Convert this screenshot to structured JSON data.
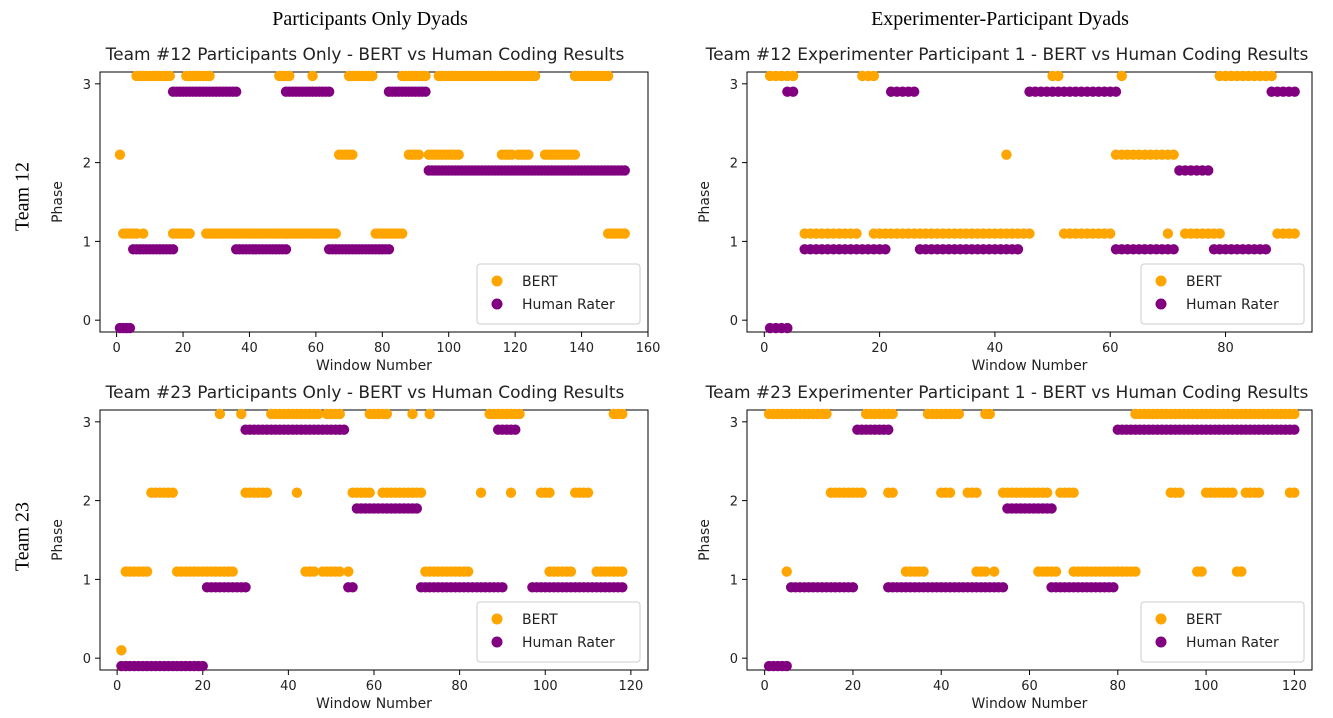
{
  "headers": {
    "left": "Participants Only Dyads",
    "right": "Experimenter-Participant Dyads"
  },
  "rows": {
    "top": "Team 12",
    "bottom": "Team 23"
  },
  "colors": {
    "bert": "#FFA500",
    "human": "#800080"
  },
  "chart_data": [
    {
      "type": "scatter",
      "title": "Team #12 Participants Only - BERT vs Human Coding Results",
      "xlabel": "Window Number",
      "ylabel": "Phase",
      "xlim": [
        -5,
        160
      ],
      "ylim": [
        -0.15,
        3.15
      ],
      "xticks": [
        0,
        20,
        40,
        60,
        80,
        100,
        120,
        140,
        160
      ],
      "yticks": [
        0,
        1,
        2,
        3
      ],
      "legend": "lower-right",
      "series": [
        {
          "name": "BERT",
          "runs": [
            {
              "from": 1,
              "to": 1,
              "y": 2
            },
            {
              "from": 2,
              "to": 6,
              "y": 1
            },
            {
              "from": 6,
              "to": 16,
              "y": 3
            },
            {
              "from": 8,
              "to": 8,
              "y": 1
            },
            {
              "from": 17,
              "to": 22,
              "y": 1
            },
            {
              "from": 21,
              "to": 28,
              "y": 3
            },
            {
              "from": 27,
              "to": 51,
              "y": 1
            },
            {
              "from": 49,
              "to": 52,
              "y": 3
            },
            {
              "from": 51,
              "to": 66,
              "y": 1
            },
            {
              "from": 59,
              "to": 59,
              "y": 3
            },
            {
              "from": 67,
              "to": 71,
              "y": 2
            },
            {
              "from": 70,
              "to": 77,
              "y": 3
            },
            {
              "from": 78,
              "to": 86,
              "y": 1
            },
            {
              "from": 86,
              "to": 93,
              "y": 3
            },
            {
              "from": 88,
              "to": 91,
              "y": 2
            },
            {
              "from": 94,
              "to": 103,
              "y": 2
            },
            {
              "from": 97,
              "to": 126,
              "y": 3
            },
            {
              "from": 116,
              "to": 119,
              "y": 2
            },
            {
              "from": 121,
              "to": 124,
              "y": 2
            },
            {
              "from": 129,
              "to": 138,
              "y": 2
            },
            {
              "from": 138,
              "to": 148,
              "y": 3
            },
            {
              "from": 148,
              "to": 153,
              "y": 1
            }
          ]
        },
        {
          "name": "Human Rater",
          "runs": [
            {
              "from": 1,
              "to": 4,
              "y": 0
            },
            {
              "from": 5,
              "to": 17,
              "y": 1
            },
            {
              "from": 17,
              "to": 36,
              "y": 3
            },
            {
              "from": 36,
              "to": 51,
              "y": 1
            },
            {
              "from": 51,
              "to": 64,
              "y": 3
            },
            {
              "from": 64,
              "to": 82,
              "y": 1
            },
            {
              "from": 82,
              "to": 93,
              "y": 3
            },
            {
              "from": 94,
              "to": 153,
              "y": 2
            }
          ]
        }
      ]
    },
    {
      "type": "scatter",
      "title": "Team #12 Experimenter Participant 1 - BERT vs Human Coding Results",
      "xlabel": "Window Number",
      "ylabel": "Phase",
      "xlim": [
        -3,
        95
      ],
      "ylim": [
        -0.15,
        3.15
      ],
      "xticks": [
        0,
        20,
        40,
        60,
        80
      ],
      "yticks": [
        0,
        1,
        2,
        3
      ],
      "legend": "lower-right",
      "series": [
        {
          "name": "BERT",
          "runs": [
            {
              "from": 1,
              "to": 5,
              "y": 3
            },
            {
              "from": 7,
              "to": 16,
              "y": 1
            },
            {
              "from": 17,
              "to": 19,
              "y": 3
            },
            {
              "from": 19,
              "to": 46,
              "y": 1
            },
            {
              "from": 42,
              "to": 42,
              "y": 2
            },
            {
              "from": 50,
              "to": 51,
              "y": 3
            },
            {
              "from": 52,
              "to": 60,
              "y": 1
            },
            {
              "from": 61,
              "to": 71,
              "y": 2
            },
            {
              "from": 62,
              "to": 62,
              "y": 3
            },
            {
              "from": 70,
              "to": 70,
              "y": 1
            },
            {
              "from": 73,
              "to": 79,
              "y": 1
            },
            {
              "from": 79,
              "to": 88,
              "y": 3
            },
            {
              "from": 89,
              "to": 92,
              "y": 1
            }
          ]
        },
        {
          "name": "Human Rater",
          "runs": [
            {
              "from": 1,
              "to": 4,
              "y": 0
            },
            {
              "from": 4,
              "to": 5,
              "y": 3
            },
            {
              "from": 7,
              "to": 21,
              "y": 1
            },
            {
              "from": 22,
              "to": 26,
              "y": 3
            },
            {
              "from": 27,
              "to": 44,
              "y": 1
            },
            {
              "from": 46,
              "to": 61,
              "y": 3
            },
            {
              "from": 61,
              "to": 71,
              "y": 1
            },
            {
              "from": 72,
              "to": 77,
              "y": 2
            },
            {
              "from": 78,
              "to": 87,
              "y": 1
            },
            {
              "from": 88,
              "to": 92,
              "y": 3
            }
          ]
        }
      ]
    },
    {
      "type": "scatter",
      "title": "Team #23 Participants Only - BERT vs Human Coding Results",
      "xlabel": "Window Number",
      "ylabel": "Phase",
      "xlim": [
        -4,
        124
      ],
      "ylim": [
        -0.15,
        3.15
      ],
      "xticks": [
        0,
        20,
        40,
        60,
        80,
        100,
        120
      ],
      "yticks": [
        0,
        1,
        2,
        3
      ],
      "legend": "lower-right",
      "series": [
        {
          "name": "BERT",
          "runs": [
            {
              "from": 1,
              "to": 1,
              "y": 0
            },
            {
              "from": 2,
              "to": 7,
              "y": 1
            },
            {
              "from": 8,
              "to": 13,
              "y": 2
            },
            {
              "from": 14,
              "to": 27,
              "y": 1
            },
            {
              "from": 24,
              "to": 24,
              "y": 3
            },
            {
              "from": 29,
              "to": 29,
              "y": 3
            },
            {
              "from": 30,
              "to": 35,
              "y": 2
            },
            {
              "from": 36,
              "to": 47,
              "y": 3
            },
            {
              "from": 42,
              "to": 42,
              "y": 2
            },
            {
              "from": 44,
              "to": 46,
              "y": 1
            },
            {
              "from": 48,
              "to": 52,
              "y": 1
            },
            {
              "from": 49,
              "to": 52,
              "y": 3
            },
            {
              "from": 54,
              "to": 54,
              "y": 1
            },
            {
              "from": 55,
              "to": 59,
              "y": 2
            },
            {
              "from": 59,
              "to": 63,
              "y": 3
            },
            {
              "from": 62,
              "to": 71,
              "y": 2
            },
            {
              "from": 69,
              "to": 69,
              "y": 3
            },
            {
              "from": 72,
              "to": 82,
              "y": 1
            },
            {
              "from": 73,
              "to": 73,
              "y": 3
            },
            {
              "from": 85,
              "to": 85,
              "y": 2
            },
            {
              "from": 87,
              "to": 94,
              "y": 3
            },
            {
              "from": 92,
              "to": 92,
              "y": 2
            },
            {
              "from": 99,
              "to": 101,
              "y": 2
            },
            {
              "from": 101,
              "to": 106,
              "y": 1
            },
            {
              "from": 107,
              "to": 110,
              "y": 2
            },
            {
              "from": 112,
              "to": 117,
              "y": 1
            },
            {
              "from": 116,
              "to": 118,
              "y": 3
            },
            {
              "from": 118,
              "to": 118,
              "y": 1
            }
          ]
        },
        {
          "name": "Human Rater",
          "runs": [
            {
              "from": 1,
              "to": 20,
              "y": 0
            },
            {
              "from": 21,
              "to": 30,
              "y": 1
            },
            {
              "from": 30,
              "to": 53,
              "y": 3
            },
            {
              "from": 54,
              "to": 55,
              "y": 1
            },
            {
              "from": 56,
              "to": 70,
              "y": 2
            },
            {
              "from": 71,
              "to": 90,
              "y": 1
            },
            {
              "from": 89,
              "to": 93,
              "y": 3
            },
            {
              "from": 97,
              "to": 118,
              "y": 1
            }
          ]
        }
      ]
    },
    {
      "type": "scatter",
      "title": "Team #23 Experimenter Participant 1 - BERT vs Human Coding Results",
      "xlabel": "Window Number",
      "ylabel": "Phase",
      "xlim": [
        -4,
        124
      ],
      "ylim": [
        -0.15,
        3.15
      ],
      "xticks": [
        0,
        20,
        40,
        60,
        80,
        100,
        120
      ],
      "yticks": [
        0,
        1,
        2,
        3
      ],
      "legend": "lower-right",
      "series": [
        {
          "name": "BERT",
          "runs": [
            {
              "from": 1,
              "to": 14,
              "y": 3
            },
            {
              "from": 5,
              "to": 5,
              "y": 1
            },
            {
              "from": 15,
              "to": 22,
              "y": 2
            },
            {
              "from": 23,
              "to": 29,
              "y": 3
            },
            {
              "from": 28,
              "to": 29,
              "y": 2
            },
            {
              "from": 32,
              "to": 36,
              "y": 1
            },
            {
              "from": 37,
              "to": 44,
              "y": 3
            },
            {
              "from": 40,
              "to": 42,
              "y": 2
            },
            {
              "from": 46,
              "to": 48,
              "y": 2
            },
            {
              "from": 48,
              "to": 50,
              "y": 1
            },
            {
              "from": 50,
              "to": 51,
              "y": 3
            },
            {
              "from": 52,
              "to": 52,
              "y": 1
            },
            {
              "from": 54,
              "to": 64,
              "y": 2
            },
            {
              "from": 62,
              "to": 66,
              "y": 1
            },
            {
              "from": 67,
              "to": 70,
              "y": 2
            },
            {
              "from": 70,
              "to": 84,
              "y": 1
            },
            {
              "from": 84,
              "to": 120,
              "y": 3
            },
            {
              "from": 92,
              "to": 94,
              "y": 2
            },
            {
              "from": 98,
              "to": 99,
              "y": 1
            },
            {
              "from": 100,
              "to": 106,
              "y": 2
            },
            {
              "from": 107,
              "to": 108,
              "y": 1
            },
            {
              "from": 109,
              "to": 112,
              "y": 2
            },
            {
              "from": 119,
              "to": 120,
              "y": 2
            }
          ]
        },
        {
          "name": "Human Rater",
          "runs": [
            {
              "from": 1,
              "to": 5,
              "y": 0
            },
            {
              "from": 6,
              "to": 20,
              "y": 1
            },
            {
              "from": 21,
              "to": 28,
              "y": 3
            },
            {
              "from": 28,
              "to": 54,
              "y": 1
            },
            {
              "from": 55,
              "to": 65,
              "y": 2
            },
            {
              "from": 65,
              "to": 79,
              "y": 1
            },
            {
              "from": 80,
              "to": 120,
              "y": 3
            }
          ]
        }
      ]
    }
  ]
}
